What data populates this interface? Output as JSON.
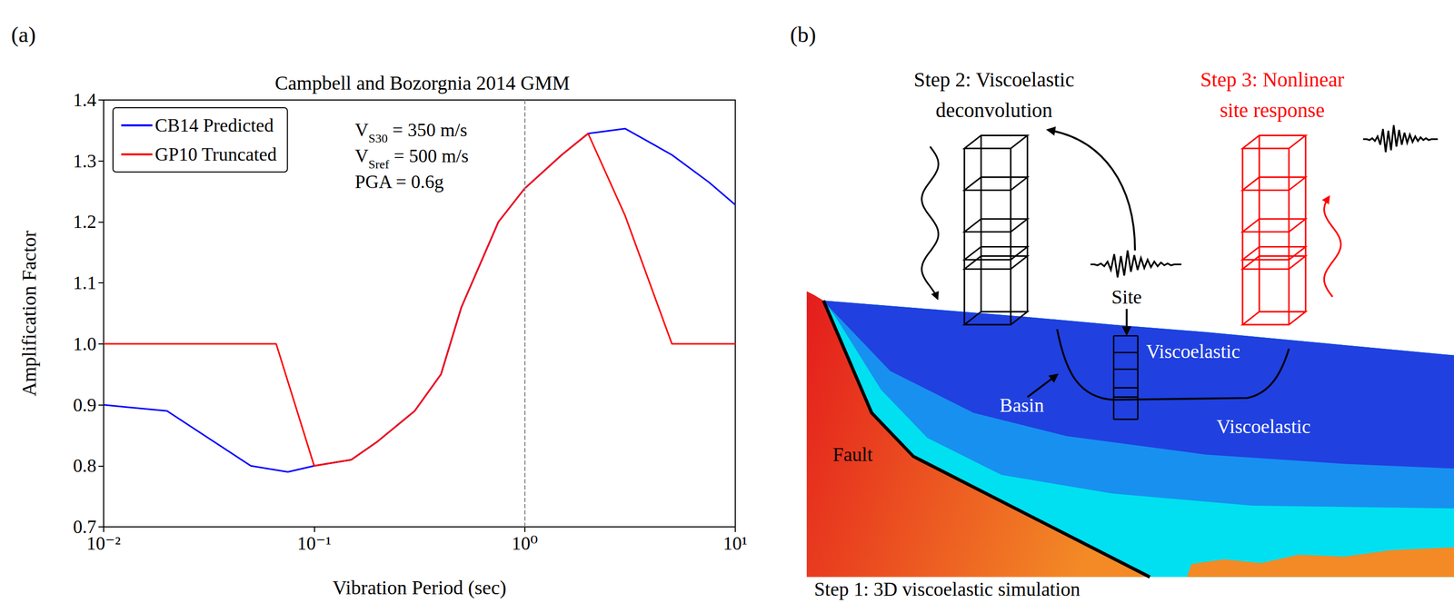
{
  "panel_labels": [
    "(a)",
    "(b)"
  ],
  "chart_data": {
    "type": "line",
    "title": "Campbell and Bozorgnia 2014 GMM",
    "x_label": "Vibration Period (sec)",
    "y_label": "Amplification Factor",
    "log": "x",
    "xlim": [
      0.01,
      10
    ],
    "xticks": [
      {
        "value": 0.01,
        "label": "10⁻²"
      },
      {
        "value": 0.1,
        "label": "10⁻¹"
      },
      {
        "value": 1,
        "label": "10⁰"
      },
      {
        "value": 10,
        "label": "10¹"
      }
    ],
    "ylim": [
      0.7,
      1.4
    ],
    "yticks": [
      0.7,
      0.8,
      0.9,
      {
        "value": 1,
        "label": "1.0"
      },
      1.1,
      1.2,
      1.3,
      1.4
    ],
    "grid": false,
    "legend": "upper left",
    "series": [
      {
        "name": "CB14 Predicted",
        "color": "#0000ff",
        "x": [
          0.01,
          0.02,
          0.05,
          0.075,
          0.1,
          0.15,
          0.2,
          0.3,
          0.4,
          0.5,
          0.75,
          1,
          1.5,
          2,
          3,
          5,
          7.5,
          10
        ],
        "values": [
          0.9,
          0.89,
          0.8,
          0.79,
          0.8,
          0.81,
          0.84,
          0.89,
          0.95,
          1.06,
          1.2,
          1.255,
          1.31,
          1.345,
          1.353,
          1.31,
          1.265,
          1.228
        ]
      },
      {
        "name": "GP10 Truncated",
        "color": "#ff0000",
        "x": [
          0.01,
          0.066,
          0.1,
          0.15,
          0.2,
          0.3,
          0.4,
          0.5,
          0.75,
          1,
          1.5,
          2,
          3,
          5,
          10
        ],
        "values": [
          1.0,
          1.0,
          0.8,
          0.81,
          0.84,
          0.89,
          0.95,
          1.06,
          1.2,
          1.255,
          1.31,
          1.345,
          1.21,
          1.0,
          1.0
        ]
      }
    ],
    "annotations": [
      {
        "main": "V",
        "sub": "S30",
        "tail": " = 350 m/s"
      },
      {
        "main": "V",
        "sub": "Sref",
        "tail": " = 500 m/s"
      },
      {
        "main": "PGA = 0.6g",
        "sub": "",
        "tail": ""
      }
    ],
    "reference_lines": [
      {
        "x": 1,
        "line_style": "dashed",
        "color": "#808080"
      }
    ]
  },
  "diagram": {
    "step1": "Step 1: 3D viscoelastic simulation",
    "step2": [
      "Step 2: Viscoelastic",
      "deconvolution"
    ],
    "step3": [
      "Step 3: Nonlinear",
      "site response"
    ],
    "site": "Site",
    "basin": "Basin",
    "fault": "Fault",
    "layers": [
      "Viscoelastic",
      "Viscoelastic"
    ]
  }
}
